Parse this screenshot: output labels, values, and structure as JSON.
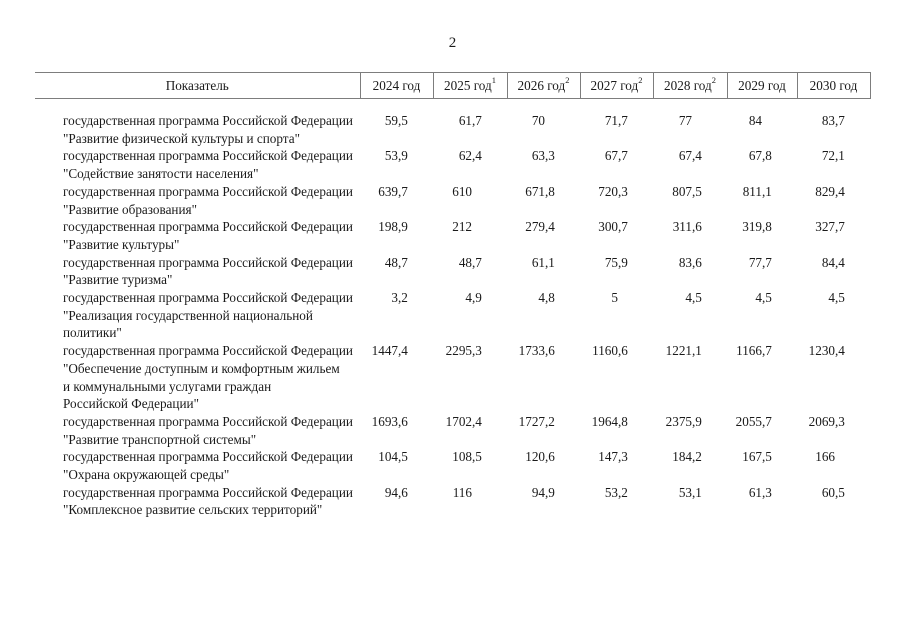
{
  "page": {
    "number": "2"
  },
  "colors": {
    "background": "#ffffff",
    "text": "#1a1a1a",
    "table_border": "#7d7d7d"
  },
  "table": {
    "columns": [
      {
        "label": "Показатель",
        "sup": ""
      },
      {
        "label": "2024 год",
        "sup": ""
      },
      {
        "label": "2025 год",
        "sup": "1"
      },
      {
        "label": "2026 год",
        "sup": "2"
      },
      {
        "label": "2027 год",
        "sup": "2"
      },
      {
        "label": "2028 год",
        "sup": "2"
      },
      {
        "label": "2029 год",
        "sup": ""
      },
      {
        "label": "2030 год",
        "sup": ""
      }
    ],
    "rows": [
      {
        "name": "государственная программа Российской Федерации\n\"Развитие физической культуры и спорта\"",
        "values": [
          "59,5",
          "61,7",
          "70",
          "71,7",
          "77",
          "84",
          "83,7"
        ]
      },
      {
        "name": "государственная программа Российской Федерации\n\"Содействие занятости населения\"",
        "values": [
          "53,9",
          "62,4",
          "63,3",
          "67,7",
          "67,4",
          "67,8",
          "72,1"
        ]
      },
      {
        "name": "государственная программа Российской Федерации\n\"Развитие образования\"",
        "values": [
          "639,7",
          "610",
          "671,8",
          "720,3",
          "807,5",
          "811,1",
          "829,4"
        ]
      },
      {
        "name": "государственная программа Российской Федерации\n\"Развитие культуры\"",
        "values": [
          "198,9",
          "212",
          "279,4",
          "300,7",
          "311,6",
          "319,8",
          "327,7"
        ]
      },
      {
        "name": "государственная программа Российской Федерации\n\"Развитие туризма\"",
        "values": [
          "48,7",
          "48,7",
          "61,1",
          "75,9",
          "83,6",
          "77,7",
          "84,4"
        ]
      },
      {
        "name": "государственная программа Российской Федерации\n\"Реализация государственной национальной\nполитики\"",
        "values": [
          "3,2",
          "4,9",
          "4,8",
          "5",
          "4,5",
          "4,5",
          "4,5"
        ]
      },
      {
        "name": "государственная программа Российской Федерации\n\"Обеспечение доступным и комфортным жильем\nи коммунальными услугами граждан\nРоссийской Федерации\"",
        "values": [
          "1447,4",
          "2295,3",
          "1733,6",
          "1160,6",
          "1221,1",
          "1166,7",
          "1230,4"
        ]
      },
      {
        "name": "государственная программа Российской Федерации\n\"Развитие транспортной системы\"",
        "values": [
          "1693,6",
          "1702,4",
          "1727,2",
          "1964,8",
          "2375,9",
          "2055,7",
          "2069,3"
        ]
      },
      {
        "name": "государственная программа Российской Федерации\n\"Охрана окружающей среды\"",
        "values": [
          "104,5",
          "108,5",
          "120,6",
          "147,3",
          "184,2",
          "167,5",
          "166"
        ]
      },
      {
        "name": "государственная программа Российской Федерации\n\"Комплексное развитие сельских территорий\"",
        "values": [
          "94,6",
          "116",
          "94,9",
          "53,2",
          "53,1",
          "61,3",
          "60,5"
        ]
      }
    ]
  }
}
